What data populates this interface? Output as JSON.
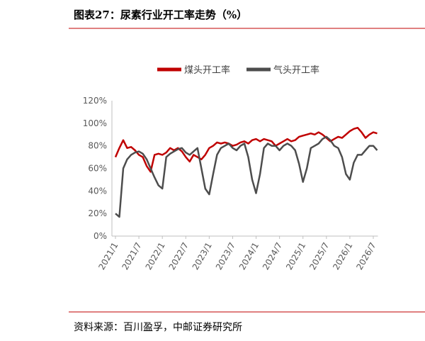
{
  "header": {
    "title": "图表27：尿素行业开工率走势（%）"
  },
  "chart_data": {
    "type": "line",
    "categories": [
      "2021/1",
      null,
      null,
      null,
      null,
      null,
      "2021/7",
      null,
      null,
      null,
      null,
      null,
      "2022/1",
      null,
      null,
      null,
      null,
      null,
      "2022/7",
      null,
      null,
      null,
      null,
      null,
      "2023/1",
      null,
      null,
      null,
      null,
      null,
      "2023/7",
      null,
      null,
      null,
      null,
      null,
      "2024/1",
      null,
      null,
      null,
      null,
      null,
      "2024/7",
      null,
      null,
      null,
      null,
      null,
      "2025/1",
      null,
      null,
      null,
      null,
      null,
      "2025/7",
      null,
      null,
      null,
      null,
      null,
      "2026/1",
      null,
      null,
      null,
      null,
      null,
      "2026/7",
      null
    ],
    "series": [
      {
        "name": "煤头开工率",
        "color": "#c00000",
        "values": [
          70,
          78,
          85,
          78,
          79,
          76,
          72,
          70,
          62,
          57,
          72,
          73,
          72,
          74,
          78,
          76,
          78,
          75,
          70,
          66,
          72,
          70,
          68,
          72,
          78,
          80,
          83,
          82,
          83,
          82,
          80,
          81,
          83,
          84,
          82,
          85,
          86,
          84,
          86,
          85,
          84,
          80,
          82,
          84,
          86,
          84,
          85,
          88,
          89,
          90,
          91,
          90,
          92,
          90,
          87,
          84,
          86,
          88,
          87,
          90,
          93,
          95,
          96,
          92,
          87,
          90,
          92,
          91
        ]
      },
      {
        "name": "气头开工率",
        "color": "#4d4d4d",
        "values": [
          20,
          17,
          60,
          68,
          72,
          74,
          75,
          73,
          68,
          60,
          52,
          45,
          42,
          70,
          73,
          75,
          77,
          78,
          74,
          72,
          75,
          78,
          60,
          42,
          37,
          55,
          72,
          78,
          80,
          82,
          78,
          76,
          80,
          82,
          70,
          50,
          38,
          55,
          78,
          82,
          80,
          80,
          76,
          80,
          82,
          80,
          76,
          64,
          48,
          60,
          78,
          80,
          82,
          86,
          88,
          85,
          80,
          78,
          70,
          55,
          50,
          65,
          72,
          72,
          76,
          80,
          80,
          76
        ]
      }
    ],
    "ylim": [
      0,
      120
    ],
    "yticks": [
      {
        "value": 0,
        "label": "0%"
      },
      {
        "value": 20,
        "label": "20%"
      },
      {
        "value": 40,
        "label": "40%"
      },
      {
        "value": 60,
        "label": "60%"
      },
      {
        "value": 80,
        "label": "80%"
      },
      {
        "value": 100,
        "label": "100%"
      },
      {
        "value": 120,
        "label": "120%"
      }
    ],
    "legend": "top"
  },
  "footer": {
    "source": "资料来源：百川盈孚，中邮证券研究所"
  }
}
